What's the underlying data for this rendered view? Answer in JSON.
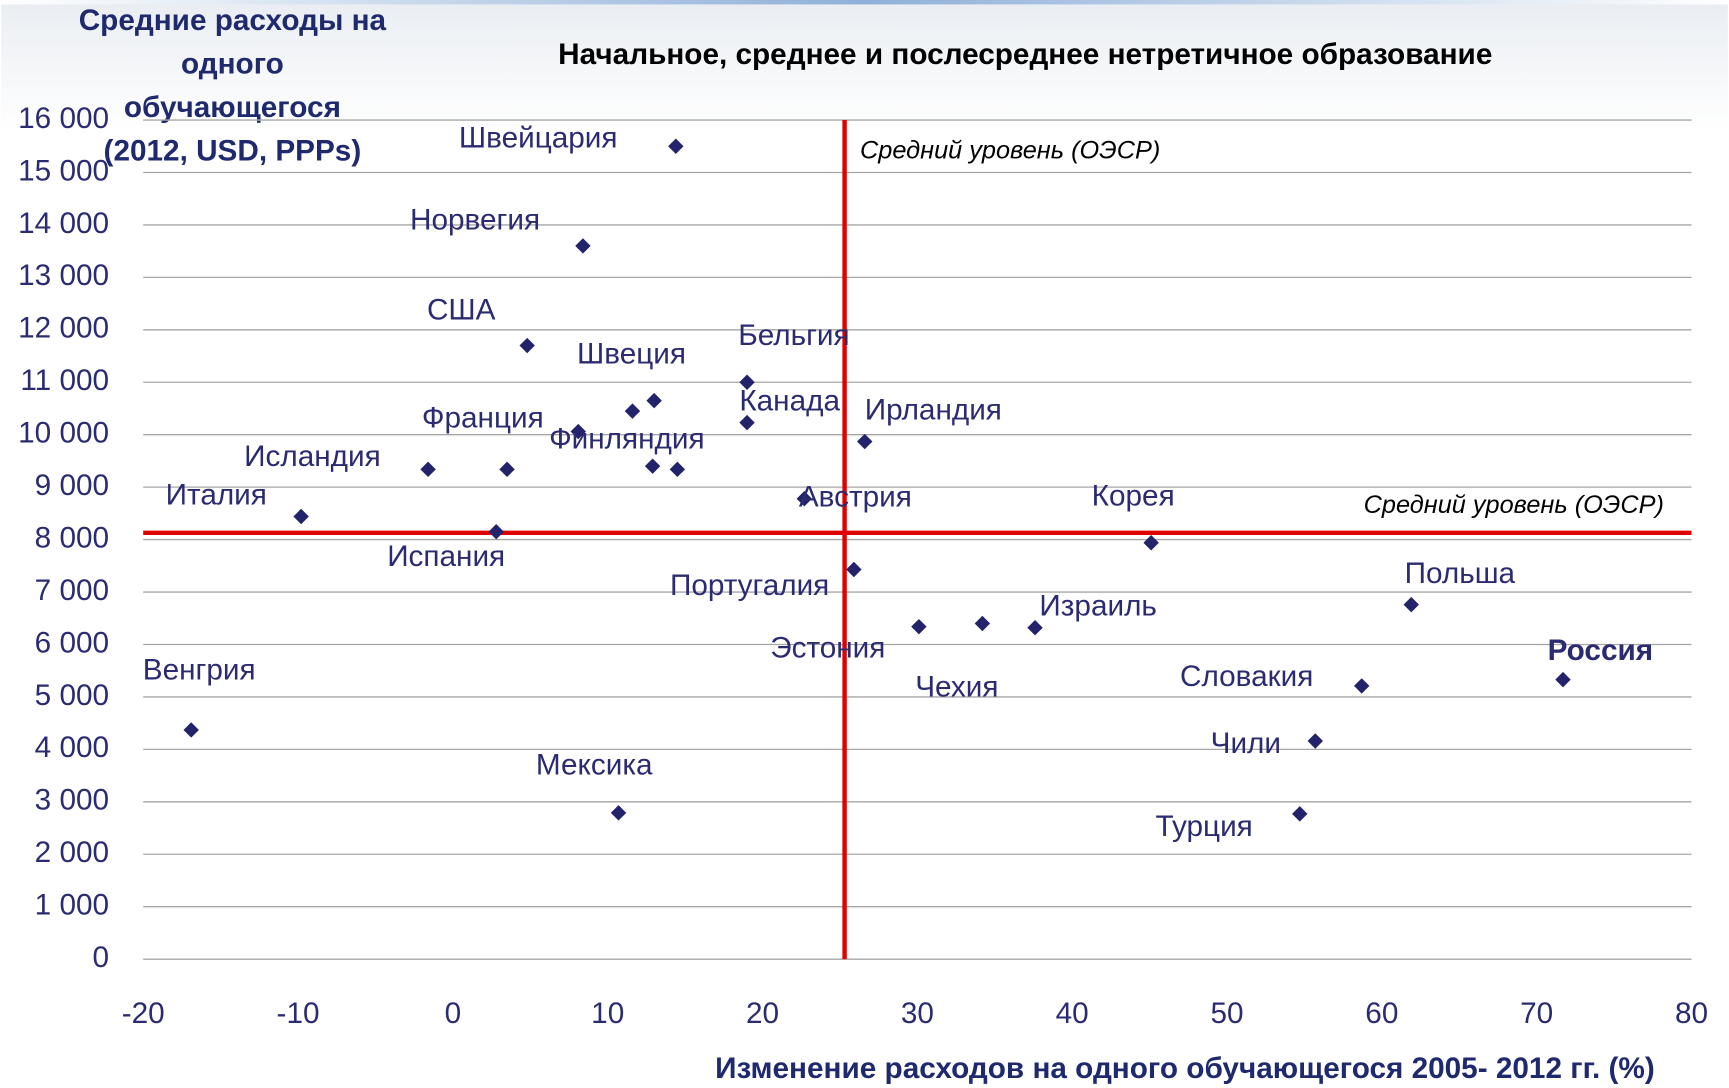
{
  "chart_data": {
    "type": "scatter",
    "title": "Начальное, среднее и послесреднее нетретичное образование",
    "y_label": [
      "Средние расходы на",
      "одного",
      "обучающегося",
      "(2012, USD, PPPs)"
    ],
    "x_label": "Изменение расходов на одного обучающегося 2005- 2012 гг. (%)",
    "labels": [
      "Швейцария",
      "Норвегия",
      "США",
      null,
      "Швеция",
      "Бельгия",
      "Канада",
      "Ирландия",
      "Франция",
      "Финляндия",
      null,
      null,
      "Исландия",
      "Италия",
      "Испания",
      "Австрия",
      "Корея",
      "Португалия",
      "Эстония",
      "Чехия",
      "Израиль",
      "Польша",
      "Россия",
      "Словакия",
      "Чили",
      "Турция",
      "Венгрия",
      "Мексика"
    ],
    "x": [
      14.4,
      8.4,
      4.8,
      11.6,
      13.0,
      19.0,
      19.0,
      26.6,
      8.1,
      12.9,
      14.5,
      3.5,
      -1.6,
      -9.8,
      2.8,
      22.7,
      45.1,
      25.9,
      30.1,
      34.2,
      37.6,
      61.9,
      71.7,
      58.7,
      55.7,
      54.7,
      -16.9,
      10.7
    ],
    "y": [
      15500,
      13600,
      11700,
      10450,
      10650,
      11000,
      10230,
      9870,
      10060,
      9400,
      9340,
      9340,
      9340,
      8440,
      8150,
      8780,
      7940,
      7430,
      6340,
      6400,
      6320,
      6760,
      5330,
      5210,
      4160,
      2770,
      4370,
      2790
    ],
    "color": "#23236b",
    "label_color": "#2b2b72",
    "highlight": {
      "index": 22,
      "color": "#e00000"
    },
    "reference_lines": {
      "x": 25.3,
      "y": 8130,
      "color": "#e00000",
      "x_label": "Средний уровень (ОЭСР)",
      "y_label": "Средний уровень (ОЭСР)"
    },
    "xlim": [
      -20,
      80
    ],
    "xticks": [
      -20,
      -10,
      0,
      10,
      20,
      30,
      40,
      50,
      60,
      70,
      80
    ],
    "ylim": [
      0,
      16000
    ],
    "yticks": [
      0,
      {
        "value": 1000,
        "label": "1 000"
      },
      {
        "value": 2000,
        "label": "2 000"
      },
      {
        "value": 3000,
        "label": "3 000"
      },
      {
        "value": 4000,
        "label": "4 000"
      },
      {
        "value": 5000,
        "label": "5 000"
      },
      {
        "value": 6000,
        "label": "6 000"
      },
      {
        "value": 7000,
        "label": "7 000"
      },
      {
        "value": 8000,
        "label": "8 000"
      },
      {
        "value": 9000,
        "label": "9 000"
      },
      {
        "value": 10000,
        "label": "10 000"
      },
      {
        "value": 11000,
        "label": "11 000"
      },
      {
        "value": 12000,
        "label": "12 000"
      },
      {
        "value": 13000,
        "label": "13 000"
      },
      {
        "value": 14000,
        "label": "14 000"
      },
      {
        "value": 15000,
        "label": "15 000"
      },
      {
        "value": 16000,
        "label": "16 000"
      }
    ],
    "grid": true
  }
}
